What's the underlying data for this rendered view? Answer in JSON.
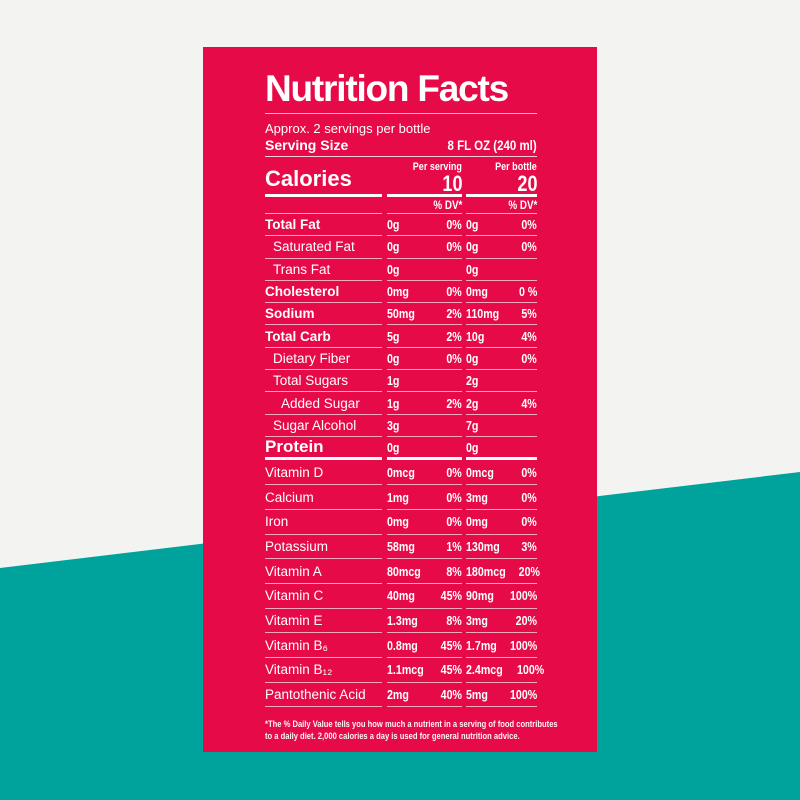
{
  "colors": {
    "card_pink": "#E60B48",
    "wedge_teal": "#00A39B",
    "background_gray": "#F3F3F2",
    "text_white": "#FFFFFF"
  },
  "header": {
    "title": "Nutrition Facts",
    "subtitle": "Approx. 2 servings per bottle",
    "serving_size_label": "Serving Size",
    "serving_size_value": "8 FL OZ (240 ml)"
  },
  "calories": {
    "label": "Calories",
    "per_serving_header": "Per serving",
    "per_bottle_header": "Per bottle",
    "per_serving_value": "10",
    "per_bottle_value": "20",
    "dv_header_per_serving": "% DV*",
    "dv_header_per_bottle": "% DV*"
  },
  "rows": [
    {
      "label": "Total Fat",
      "style": "main",
      "ps": "0g",
      "psdv": "0%",
      "pb": "0g",
      "pbdv": "0%"
    },
    {
      "label": "Saturated Fat",
      "style": "sub",
      "ps": "0g",
      "psdv": "0%",
      "pb": "0g",
      "pbdv": "0%"
    },
    {
      "label": "Trans Fat",
      "style": "sub",
      "ps": "0g",
      "psdv": "",
      "pb": "0g",
      "pbdv": ""
    },
    {
      "label": "Cholesterol",
      "style": "main",
      "ps": "0mg",
      "psdv": "0%",
      "pb": "0mg",
      "pbdv": "0 %"
    },
    {
      "label": "Sodium",
      "style": "main",
      "ps": "50mg",
      "psdv": "2%",
      "pb": "110mg",
      "pbdv": "5%"
    },
    {
      "label": "Total Carb",
      "style": "main",
      "ps": "5g",
      "psdv": "2%",
      "pb": "10g",
      "pbdv": "4%"
    },
    {
      "label": "Dietary Fiber",
      "style": "sub",
      "ps": "0g",
      "psdv": "0%",
      "pb": "0g",
      "pbdv": "0%"
    },
    {
      "label": "Total Sugars",
      "style": "sub",
      "ps": "1g",
      "psdv": "",
      "pb": "2g",
      "pbdv": ""
    },
    {
      "label": "Added Sugar",
      "style": "sub2",
      "ps": "1g",
      "psdv": "2%",
      "pb": "2g",
      "pbdv": "4%"
    },
    {
      "label": "Sugar Alcohol",
      "style": "sub",
      "ps": "3g",
      "psdv": "",
      "pb": "7g",
      "pbdv": ""
    },
    {
      "label": "Protein",
      "style": "protein",
      "ps": "0g",
      "psdv": "",
      "pb": "0g",
      "pbdv": ""
    },
    {
      "label": "Vitamin D",
      "style": "vit",
      "ps": "0mcg",
      "psdv": "0%",
      "pb": "0mcg",
      "pbdv": "0%"
    },
    {
      "label": "Calcium",
      "style": "vit",
      "ps": "1mg",
      "psdv": "0%",
      "pb": "3mg",
      "pbdv": "0%"
    },
    {
      "label": "Iron",
      "style": "vit",
      "ps": "0mg",
      "psdv": "0%",
      "pb": "0mg",
      "pbdv": "0%"
    },
    {
      "label": "Potassium",
      "style": "vit",
      "ps": "58mg",
      "psdv": "1%",
      "pb": "130mg",
      "pbdv": "3%"
    },
    {
      "label": "Vitamin A",
      "style": "vit",
      "ps": "80mcg",
      "psdv": "8%",
      "pb": "180mcg",
      "pbdv": "20%"
    },
    {
      "label": "Vitamin C",
      "style": "vit",
      "ps": "40mg",
      "psdv": "45%",
      "pb": "90mg",
      "pbdv": "100%"
    },
    {
      "label": "Vitamin E",
      "style": "vit",
      "ps": "1.3mg",
      "psdv": "8%",
      "pb": "3mg",
      "pbdv": "20%"
    },
    {
      "label": "Vitamin B₆",
      "style": "vit",
      "ps": "0.8mg",
      "psdv": "45%",
      "pb": "1.7mg",
      "pbdv": "100%"
    },
    {
      "label": "Vitamin B₁₂",
      "style": "vit",
      "ps": "1.1mcg",
      "psdv": "45%",
      "pb": "2.4mcg",
      "pbdv": "100%"
    },
    {
      "label": "Pantothenic Acid",
      "style": "vit",
      "ps": "2mg",
      "psdv": "40%",
      "pb": "5mg",
      "pbdv": "100%"
    }
  ],
  "footnote": {
    "line1": "*The % Daily Value tells you how much a nutrient in a serving of food contributes",
    "line2": "to a daily diet. 2,000 calories a day is used for general nutrition advice."
  }
}
